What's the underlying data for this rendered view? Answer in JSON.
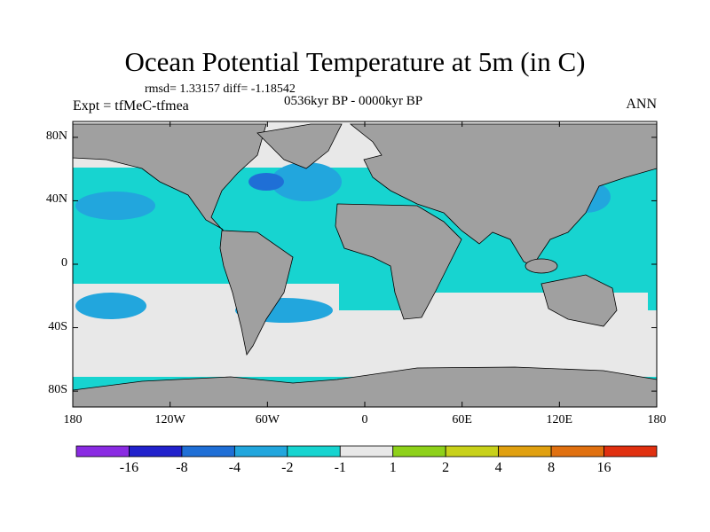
{
  "title": "Ocean Potential Temperature at 5m (in C)",
  "stats_line": "rmsd= 1.33157 diff= -1.18542",
  "period": "0536kyr BP - 0000kyr BP",
  "experiment": "Expt = tfMeC-tfmea",
  "season": "ANN",
  "axes": {
    "lon_ticks": [
      {
        "value": -180,
        "label": "180"
      },
      {
        "value": -120,
        "label": "120W"
      },
      {
        "value": -60,
        "label": "60W"
      },
      {
        "value": 0,
        "label": "0"
      },
      {
        "value": 60,
        "label": "60E"
      },
      {
        "value": 120,
        "label": "120E"
      },
      {
        "value": 180,
        "label": "180"
      }
    ],
    "lat_ticks": [
      {
        "value": 80,
        "label": "80N"
      },
      {
        "value": 40,
        "label": "40N"
      },
      {
        "value": 0,
        "label": "0"
      },
      {
        "value": -40,
        "label": "40S"
      },
      {
        "value": -80,
        "label": "80S"
      }
    ],
    "lon_range": [
      -180,
      180
    ],
    "lat_range": [
      -90,
      90
    ]
  },
  "colorbar": {
    "boxes": [
      "#8a2be2",
      "#2222cc",
      "#1f6fd6",
      "#22a6dd",
      "#17d4d0",
      "#e8e8e8",
      "#8ed11a",
      "#c8d11a",
      "#e0a010",
      "#e07010",
      "#e03010"
    ],
    "labels": [
      {
        "value": "-16",
        "boundary": 1
      },
      {
        "value": "-8",
        "boundary": 2
      },
      {
        "value": "-4",
        "boundary": 3
      },
      {
        "value": "-2",
        "boundary": 4
      },
      {
        "value": "-1",
        "boundary": 5
      },
      {
        "value": "1",
        "boundary": 6
      },
      {
        "value": "2",
        "boundary": 7
      },
      {
        "value": "4",
        "boundary": 8
      },
      {
        "value": "8",
        "boundary": 9
      },
      {
        "value": "16",
        "boundary": 10
      }
    ]
  },
  "colors": {
    "land": "#a0a0a0",
    "ocean_base": "#17d4d0",
    "cool_small": "#e8e8e8",
    "cool_mid": "#22a6dd",
    "cool_strong": "#1f6fd6"
  }
}
